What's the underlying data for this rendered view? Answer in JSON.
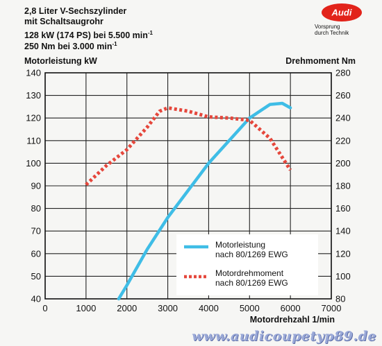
{
  "header": {
    "line1": "2,8 Liter V-Sechszylinder",
    "line2": "mit Schaltsaugrohr",
    "line3": "128 kW (174 PS) bei 5.500 min",
    "line3_sup": "-1",
    "line4": "250 Nm bei 3.000 min",
    "line4_sup": "-1"
  },
  "logo": {
    "brand": "Audi",
    "slogan_line1": "Vorsprung",
    "slogan_line2": "durch Technik",
    "color": "#e2231a"
  },
  "watermark": "www.audicoupetyp89.de",
  "chart_data": {
    "type": "line",
    "xlabel": "Motordrehzahl 1/min",
    "ylabel_left": "Motorleistung kW",
    "ylabel_right": "Drehmoment Nm",
    "xlim": [
      0,
      7000
    ],
    "ylim_left": [
      40,
      140
    ],
    "ylim_right": [
      80,
      280
    ],
    "x_ticks": [
      0,
      1000,
      2000,
      3000,
      4000,
      5000,
      6000,
      7000
    ],
    "y_left_ticks": [
      40,
      50,
      60,
      70,
      80,
      90,
      100,
      110,
      120,
      130,
      140
    ],
    "y_right_ticks": [
      80,
      100,
      120,
      140,
      160,
      180,
      200,
      220,
      240,
      260,
      280
    ],
    "grid": true,
    "legend_position": "bottom-right",
    "series": [
      {
        "name_line1": "Motorleistung",
        "name_line2": "nach 80/1269 EWG",
        "axis": "left",
        "style": "solid",
        "color": "#3fbde6",
        "points": [
          [
            1800,
            40
          ],
          [
            2000,
            46
          ],
          [
            2500,
            62
          ],
          [
            3000,
            76
          ],
          [
            3500,
            88
          ],
          [
            4000,
            100
          ],
          [
            4500,
            110
          ],
          [
            5000,
            120
          ],
          [
            5500,
            126
          ],
          [
            5800,
            126.5
          ],
          [
            6000,
            124.5
          ]
        ]
      },
      {
        "name_line1": "Motordrehmoment",
        "name_line2": "nach 80/1269 EWG",
        "axis": "right",
        "style": "dotted",
        "color": "#e5473c",
        "points": [
          [
            1000,
            181
          ],
          [
            1500,
            198
          ],
          [
            2000,
            212
          ],
          [
            2500,
            232
          ],
          [
            2800,
            246
          ],
          [
            3000,
            249
          ],
          [
            3500,
            246
          ],
          [
            4000,
            241
          ],
          [
            4500,
            240
          ],
          [
            5000,
            238
          ],
          [
            5500,
            222
          ],
          [
            6000,
            194
          ]
        ]
      }
    ]
  }
}
